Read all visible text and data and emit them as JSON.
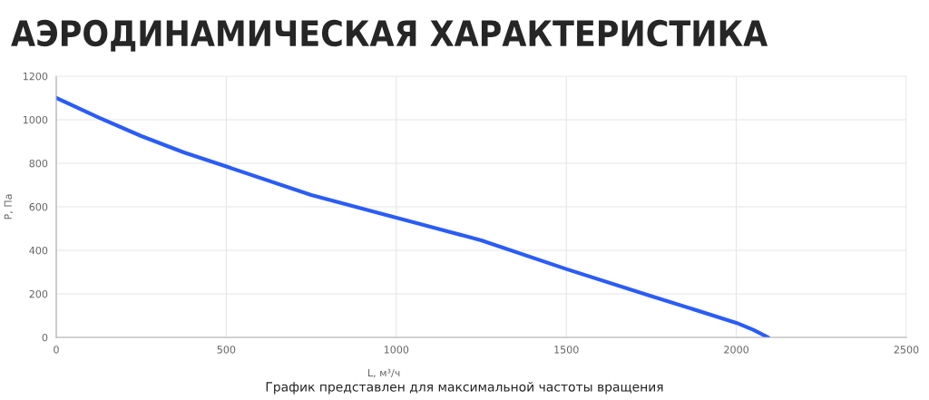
{
  "chart_data": {
    "type": "line",
    "title": "АЭРОДИНАМИЧЕСКАЯ ХАРАКТЕРИСТИКА",
    "xlabel": "L, м³/ч",
    "ylabel": "P, Па",
    "x": [
      0,
      125,
      250,
      375,
      500,
      750,
      1000,
      1250,
      1500,
      1750,
      2000,
      2050,
      2094
    ],
    "series": [
      {
        "color": "#2b5cf5",
        "values": [
          1100,
          1010,
          925,
          850,
          785,
          654,
          550,
          446,
          314,
          190,
          67,
          35,
          0
        ]
      }
    ],
    "xlim": [
      0,
      2500
    ],
    "xticks": [
      0,
      500,
      1000,
      1500,
      2000,
      2500
    ],
    "ylim": [
      0,
      1200
    ],
    "yticks": [
      0,
      200,
      400,
      600,
      800,
      1000,
      1200
    ],
    "grid": true,
    "marker": "none",
    "line_style": "solid",
    "annotations": [
      "График представлен для максимальной частоты вращения"
    ]
  }
}
